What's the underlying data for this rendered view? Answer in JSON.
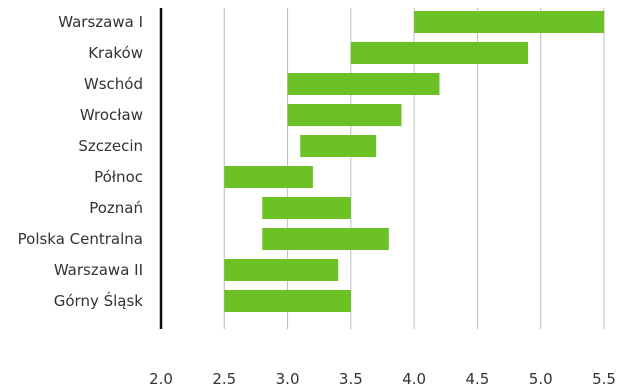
{
  "chart_data": {
    "type": "bar",
    "orientation": "horizontal",
    "bar_style": "floating-range",
    "title": "",
    "xlabel": "",
    "ylabel": "",
    "xlim": [
      2.0,
      5.5
    ],
    "x_ticks": [
      "2.0",
      "2.5",
      "3.0",
      "3.5",
      "4.0",
      "4.5",
      "5.0",
      "5.5"
    ],
    "grid": true,
    "legend": "none",
    "bar_color": "#6cc124",
    "categories": [
      "Warszawa I",
      "Kraków",
      "Wschód",
      "Wrocław",
      "Szczecin",
      "Północ",
      "Poznań",
      "Polska Centralna",
      "Warszawa II",
      "Górny Śląsk"
    ],
    "ranges": [
      [
        4.0,
        5.5
      ],
      [
        3.5,
        4.9
      ],
      [
        3.0,
        4.2
      ],
      [
        3.0,
        3.9
      ],
      [
        3.1,
        3.7
      ],
      [
        2.5,
        3.2
      ],
      [
        2.8,
        3.5
      ],
      [
        2.8,
        3.8
      ],
      [
        2.5,
        3.4
      ],
      [
        2.5,
        3.5
      ]
    ]
  }
}
